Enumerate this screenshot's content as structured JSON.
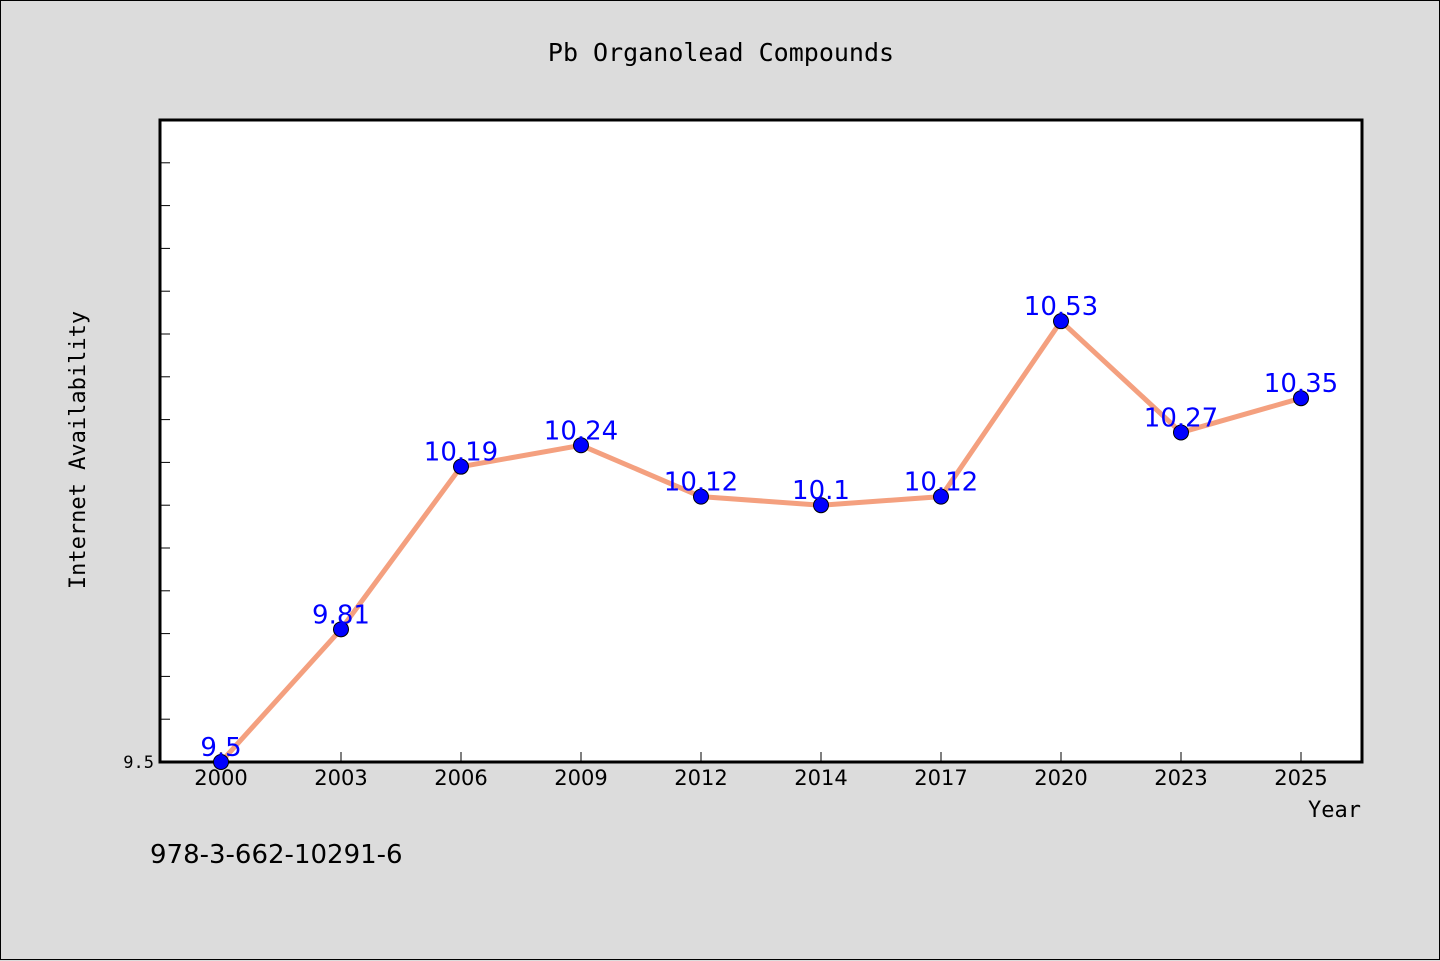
{
  "chart_data": {
    "type": "line",
    "title": "Pb Organolead Compounds",
    "xlabel": "Year",
    "ylabel": "Internet Availability",
    "categories": [
      "2000",
      "2003",
      "2006",
      "2009",
      "2012",
      "2014",
      "2017",
      "2020",
      "2023",
      "2025"
    ],
    "series": [
      {
        "values": [
          9.5,
          9.81,
          10.19,
          10.24,
          10.12,
          10.1,
          10.12,
          10.53,
          10.27,
          10.35
        ],
        "labels": [
          "9.5",
          "9.81",
          "10.19",
          "10.24",
          "10.12",
          "10.1",
          "10.12",
          "10.53",
          "10.27",
          "10.35"
        ]
      }
    ],
    "ylim": [
      9.5,
      11.0
    ],
    "y_tick_labels": [
      "9.5"
    ],
    "grid": false,
    "line_color": "#f4a07f",
    "marker_color": "#0000ff",
    "label_color": "#0000ff"
  },
  "footer_text": "978-3-662-10291-6"
}
